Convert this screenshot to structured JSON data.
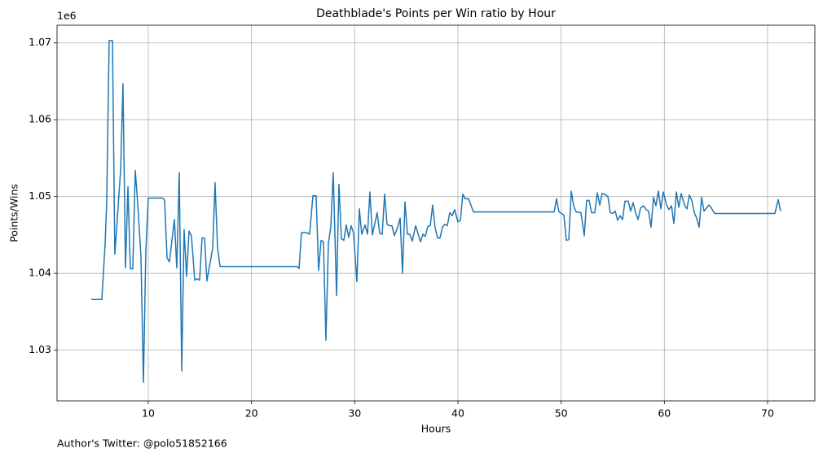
{
  "chart_data": {
    "type": "line",
    "title": "Deathblade's Points per Win ratio by Hour",
    "xlabel": "Hours",
    "ylabel": "Points/Wins",
    "y_offset_label": "1e6",
    "footer": "Author's Twitter: @polo51852166",
    "xlim": [
      1.16,
      74.58
    ],
    "ylim": [
      1.0234,
      1.0723
    ],
    "xticks": [
      10,
      20,
      30,
      40,
      50,
      60,
      70
    ],
    "yticks": [
      1.03,
      1.04,
      1.05,
      1.06,
      1.07
    ],
    "grid": true,
    "series": [
      {
        "name": "Points/Wins",
        "color": "#1f77b4",
        "x": [
          4.47,
          5.5,
          5.82,
          5.97,
          6.21,
          6.53,
          6.76,
          7.0,
          7.32,
          7.55,
          7.79,
          8.03,
          8.26,
          8.5,
          8.74,
          8.97,
          9.29,
          9.53,
          9.76,
          10.0,
          11.42,
          11.58,
          11.82,
          12.05,
          12.53,
          12.76,
          13.0,
          13.24,
          13.47,
          13.71,
          13.95,
          14.18,
          14.5,
          14.74,
          14.97,
          15.21,
          15.45,
          15.68,
          16.24,
          16.47,
          16.71,
          16.95,
          24.45,
          24.61,
          24.84,
          25.32,
          25.63,
          25.95,
          26.26,
          26.5,
          26.74,
          26.97,
          27.21,
          27.45,
          27.68,
          27.92,
          28.24,
          28.47,
          28.71,
          28.95,
          29.18,
          29.42,
          29.66,
          29.89,
          30.21,
          30.45,
          30.68,
          31.0,
          31.24,
          31.47,
          31.71,
          31.95,
          32.18,
          32.42,
          32.66,
          32.9,
          33.13,
          33.37,
          33.61,
          33.84,
          34.16,
          34.4,
          34.63,
          34.87,
          35.11,
          35.34,
          35.58,
          35.9,
          36.13,
          36.37,
          36.61,
          36.84,
          37.08,
          37.32,
          37.55,
          37.79,
          38.03,
          38.26,
          38.5,
          38.74,
          38.97,
          39.21,
          39.45,
          39.68,
          40.0,
          40.24,
          40.47,
          40.71,
          41.03,
          41.5,
          49.32,
          49.55,
          49.79,
          50.03,
          50.26,
          50.5,
          50.74,
          50.98,
          51.21,
          51.45,
          51.92,
          52.24,
          52.47,
          52.71,
          52.95,
          53.26,
          53.5,
          53.74,
          53.97,
          54.21,
          54.53,
          54.76,
          55.0,
          55.24,
          55.47,
          55.71,
          55.95,
          56.18,
          56.5,
          56.74,
          56.97,
          57.21,
          57.45,
          57.69,
          58.0,
          58.24,
          58.47,
          58.71,
          58.95,
          59.18,
          59.42,
          59.66,
          59.9,
          60.21,
          60.45,
          60.69,
          60.92,
          61.16,
          61.4,
          61.63,
          61.95,
          62.19,
          62.42,
          62.66,
          62.9,
          63.13,
          63.37,
          63.61,
          63.84,
          64.08,
          64.32,
          64.55,
          64.87,
          70.55,
          70.71,
          71.03,
          71.26
        ],
        "values": [
          1.0366,
          1.0366,
          1.0439,
          1.0492,
          1.0703,
          1.0703,
          1.0425,
          1.0472,
          1.0534,
          1.0647,
          1.0407,
          1.0513,
          1.0406,
          1.0406,
          1.0534,
          1.0492,
          1.0422,
          1.0258,
          1.0428,
          1.0498,
          1.0498,
          1.0495,
          1.042,
          1.0415,
          1.047,
          1.0407,
          1.0531,
          1.0273,
          1.0457,
          1.0396,
          1.0455,
          1.0449,
          1.0391,
          1.0393,
          1.0391,
          1.0446,
          1.0446,
          1.039,
          1.0433,
          1.0518,
          1.0433,
          1.0409,
          1.0409,
          1.0406,
          1.0453,
          1.0453,
          1.0451,
          1.0501,
          1.0501,
          1.0404,
          1.0443,
          1.0441,
          1.0313,
          1.0439,
          1.046,
          1.0531,
          1.0371,
          1.0516,
          1.0445,
          1.0443,
          1.0463,
          1.0447,
          1.0462,
          1.0452,
          1.0389,
          1.0484,
          1.0451,
          1.0463,
          1.0451,
          1.0506,
          1.045,
          1.0465,
          1.0479,
          1.0452,
          1.0451,
          1.0503,
          1.0464,
          1.0462,
          1.0462,
          1.0449,
          1.046,
          1.0472,
          1.04,
          1.0493,
          1.0451,
          1.0451,
          1.0442,
          1.0462,
          1.0452,
          1.0441,
          1.0451,
          1.0448,
          1.0461,
          1.0462,
          1.0489,
          1.0459,
          1.0446,
          1.0446,
          1.046,
          1.0464,
          1.0462,
          1.0479,
          1.0475,
          1.0483,
          1.0467,
          1.0469,
          1.0503,
          1.0497,
          1.0497,
          1.048,
          1.048,
          1.0497,
          1.048,
          1.0478,
          1.0476,
          1.0443,
          1.0444,
          1.0507,
          1.0488,
          1.048,
          1.0479,
          1.0449,
          1.0495,
          1.0495,
          1.0479,
          1.0479,
          1.0505,
          1.0489,
          1.0504,
          1.0503,
          1.05,
          1.0479,
          1.0478,
          1.0481,
          1.0469,
          1.0475,
          1.047,
          1.0494,
          1.0494,
          1.0481,
          1.0492,
          1.0479,
          1.047,
          1.0485,
          1.0488,
          1.0483,
          1.0481,
          1.046,
          1.0499,
          1.0488,
          1.0507,
          1.0484,
          1.0506,
          1.0489,
          1.0483,
          1.0488,
          1.0465,
          1.0506,
          1.0486,
          1.0504,
          1.0489,
          1.0484,
          1.0502,
          1.0495,
          1.0479,
          1.0472,
          1.046,
          1.0499,
          1.0481,
          1.0485,
          1.0489,
          1.0485,
          1.0478,
          1.0478,
          1.0478,
          1.0496,
          1.0481
        ]
      }
    ]
  }
}
